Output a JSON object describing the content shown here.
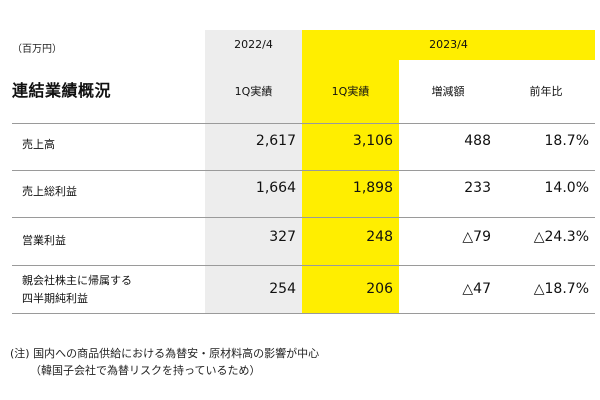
{
  "unit": "（百万円）",
  "title": "連結業績概況",
  "headers": {
    "year_prev": "2022/4",
    "year_cur": "2023/4",
    "cols": [
      "1Q実績",
      "1Q実績",
      "増減額",
      "前年比"
    ]
  },
  "rows": [
    {
      "label1": "売上高",
      "label2": "",
      "prev": "2,617",
      "cur": "3,106",
      "diff": "488",
      "ratio": "18.7%"
    },
    {
      "label1": "売上総利益",
      "label2": "",
      "prev": "1,664",
      "cur": "1,898",
      "diff": "233",
      "ratio": "14.0%"
    },
    {
      "label1": "営業利益",
      "label2": "",
      "prev": "327",
      "cur": "248",
      "diff": "△79",
      "ratio": "△24.3%"
    },
    {
      "label1": "親会社株主に帰属する",
      "label2": "四半期純利益",
      "prev": "254",
      "cur": "206",
      "diff": "△47",
      "ratio": "△18.7%"
    }
  ],
  "notes": {
    "line1": "(注) 国内への商品供給における為替安・原材料高の影響が中心",
    "line2": "（韓国子会社で為替リスクを持っているため）"
  }
}
